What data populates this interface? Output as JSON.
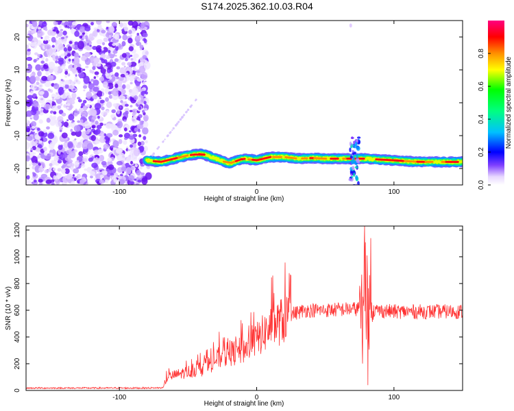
{
  "title": "S174.2025.362.10.03.R04",
  "chart_data": [
    {
      "type": "heatmap",
      "xlabel": "Height of straight line (km)",
      "ylabel": "Frequency (Hz)",
      "xlim": [
        -168,
        150
      ],
      "ylim": [
        -25,
        25
      ],
      "xticks": [
        -100,
        0,
        100
      ],
      "xtick_labels": [
        "-100",
        "0",
        "100"
      ],
      "yticks": [
        -20,
        -10,
        0,
        10,
        20
      ],
      "ytick_labels": [
        "-20",
        "-10",
        "0",
        "10",
        "20"
      ],
      "colorbar": {
        "label": "Normalized spectral amplitude",
        "range": [
          0,
          1
        ],
        "ticks": [
          0.0,
          0.2,
          0.4,
          0.6,
          0.8
        ],
        "tick_labels": [
          "0.0",
          "0.2",
          "0.4",
          "0.6",
          "0.8"
        ]
      },
      "noise_region_x": [
        -168,
        -80
      ],
      "band_center_hz": [
        [
          -80,
          -17.5
        ],
        [
          -70,
          -18
        ],
        [
          -60,
          -17
        ],
        [
          -50,
          -16
        ],
        [
          -40,
          -15.5
        ],
        [
          -30,
          -17
        ],
        [
          -20,
          -18.5
        ],
        [
          -10,
          -17
        ],
        [
          0,
          -17.5
        ],
        [
          10,
          -16.5
        ],
        [
          20,
          -16.5
        ],
        [
          30,
          -17
        ],
        [
          40,
          -16.8
        ],
        [
          50,
          -17
        ],
        [
          60,
          -17
        ],
        [
          70,
          -17
        ],
        [
          80,
          -17
        ],
        [
          90,
          -17.3
        ],
        [
          100,
          -17.5
        ],
        [
          110,
          -17.8
        ],
        [
          120,
          -18
        ],
        [
          130,
          -18
        ],
        [
          140,
          -18
        ],
        [
          150,
          -18
        ]
      ]
    },
    {
      "type": "line",
      "xlabel": "Height of straight line (km)",
      "ylabel": "SNR (10 * v/v)",
      "xlim": [
        -168,
        150
      ],
      "ylim": [
        0,
        1230
      ],
      "xticks": [
        -100,
        0,
        100
      ],
      "xtick_labels": [
        "-100",
        "0",
        "100"
      ],
      "yticks": [
        0,
        200,
        400,
        600,
        800,
        1000,
        1200
      ],
      "ytick_labels": [
        "0",
        "200",
        "400",
        "600",
        "800",
        "1000",
        "1200"
      ],
      "series": [
        {
          "name": "SNR",
          "color": "#ff3030",
          "trend": [
            [
              -168,
              18
            ],
            [
              -80,
              18
            ],
            [
              -68,
              20
            ],
            [
              -65,
              100
            ],
            [
              -50,
              140
            ],
            [
              -40,
              160
            ],
            [
              -25,
              260
            ],
            [
              -10,
              300
            ],
            [
              0,
              380
            ],
            [
              10,
              470
            ],
            [
              20,
              530
            ],
            [
              25,
              570
            ],
            [
              35,
              600
            ],
            [
              50,
              600
            ],
            [
              60,
              605
            ],
            [
              70,
              610
            ],
            [
              76,
              610
            ],
            [
              85,
              600
            ],
            [
              100,
              590
            ],
            [
              120,
              590
            ],
            [
              150,
              590
            ]
          ]
        }
      ]
    }
  ]
}
